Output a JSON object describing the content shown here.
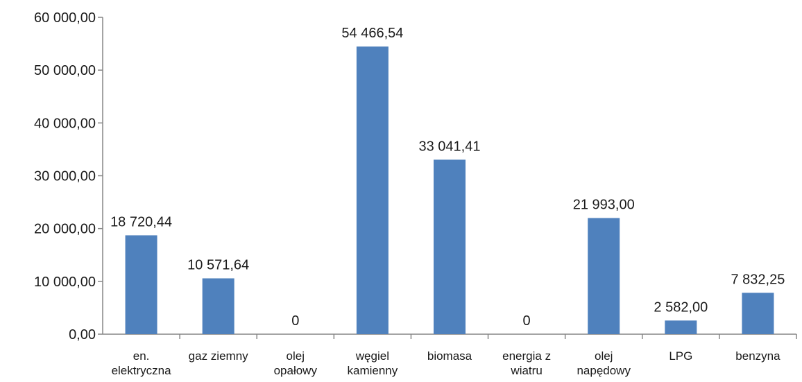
{
  "chart_data": {
    "type": "bar",
    "categories": [
      [
        "en.",
        "elektryczna"
      ],
      [
        "gaz ziemny"
      ],
      [
        "olej",
        "opałowy"
      ],
      [
        "węgiel",
        "kamienny"
      ],
      [
        "biomasa"
      ],
      [
        "energia z",
        "wiatru"
      ],
      [
        "olej",
        "napędowy"
      ],
      [
        "LPG"
      ],
      [
        "benzyna"
      ]
    ],
    "values": [
      18720.44,
      10571.64,
      0,
      54466.54,
      33041.41,
      0,
      21993.0,
      2582.0,
      7832.25
    ],
    "data_labels": [
      "18 720,44",
      "10 571,64",
      "0",
      "54 466,54",
      "33 041,41",
      "0",
      "21 993,00",
      "2 582,00",
      "7 832,25"
    ],
    "y_ticks": [
      "0,00",
      "10 000,00",
      "20 000,00",
      "30 000,00",
      "40 000,00",
      "50 000,00",
      "60 000,00"
    ],
    "ylim": [
      0,
      60000
    ],
    "title": "",
    "xlabel": "",
    "ylabel": "",
    "bar_color": "#4F81BD",
    "axis_color": "#868686"
  }
}
